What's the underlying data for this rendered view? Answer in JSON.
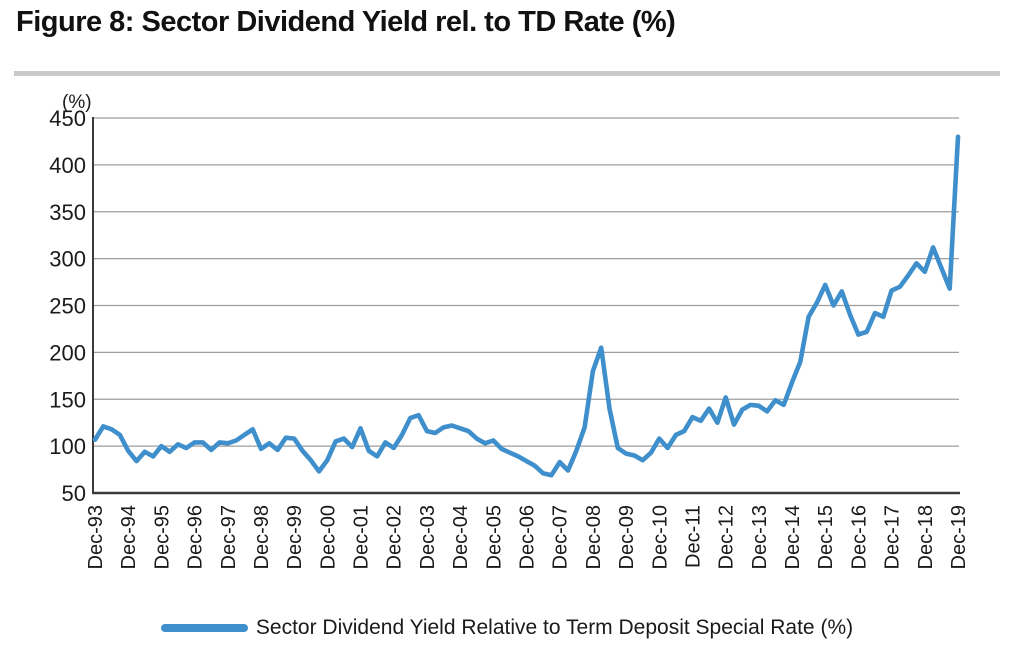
{
  "title": "Figure 8: Sector Dividend Yield rel. to TD Rate (%)",
  "legend": {
    "label": "Sector Dividend Yield Relative to Term Deposit Special Rate (%)"
  },
  "colors": {
    "line": "#3E8FCB",
    "grid": "#9e9e9e",
    "axis": "#3a3a3a",
    "divider": "#c9c9c9",
    "text": "#1a1a1a"
  },
  "chart_data": {
    "type": "line",
    "title": "Figure 8: Sector Dividend Yield rel. to TD Rate (%)",
    "unit_label": "(%)",
    "xlabel": "",
    "ylabel": "(%)",
    "ylim": [
      50,
      450
    ],
    "y_ticks": [
      450,
      400,
      350,
      300,
      250,
      200,
      150,
      100,
      50
    ],
    "grid": "horizontal",
    "legend_position": "bottom",
    "x_tick_labels": [
      "Dec-93",
      "Dec-94",
      "Dec-95",
      "Dec-96",
      "Dec-97",
      "Dec-98",
      "Dec-99",
      "Dec-00",
      "Dec-01",
      "Dec-02",
      "Dec-03",
      "Dec-04",
      "Dec-05",
      "Dec-06",
      "Dec-07",
      "Dec-08",
      "Dec-09",
      "Dec-10",
      "Dec-11",
      "Dec-12",
      "Dec-13",
      "Dec-14",
      "Dec-15",
      "Dec-16",
      "Dec-17",
      "Dec-18",
      "Dec-19"
    ],
    "points_per_year": 4,
    "x_start": "Dec-93",
    "x_end": "Dec-19",
    "series": [
      {
        "name": "Sector Dividend Yield Relative to Term Deposit Special Rate (%)",
        "color": "#3E8FCB",
        "values": [
          107,
          121,
          118,
          112,
          95,
          84,
          94,
          89,
          100,
          94,
          102,
          98,
          104,
          104,
          96,
          104,
          103,
          106,
          112,
          118,
          97,
          103,
          96,
          109,
          108,
          95,
          85,
          73,
          85,
          105,
          108,
          99,
          119,
          95,
          89,
          104,
          98,
          112,
          130,
          133,
          116,
          114,
          120,
          122,
          119,
          116,
          108,
          103,
          106,
          97,
          93,
          89,
          84,
          79,
          71,
          69,
          83,
          74,
          95,
          120,
          180,
          205,
          140,
          98,
          92,
          90,
          85,
          93,
          108,
          98,
          112,
          116,
          131,
          127,
          140,
          125,
          152,
          123,
          139,
          144,
          143,
          137,
          149,
          144,
          168,
          190,
          238,
          253,
          272,
          250,
          265,
          240,
          219,
          222,
          242,
          238,
          266,
          270,
          282,
          295,
          286,
          312,
          290,
          268,
          430
        ]
      }
    ]
  }
}
